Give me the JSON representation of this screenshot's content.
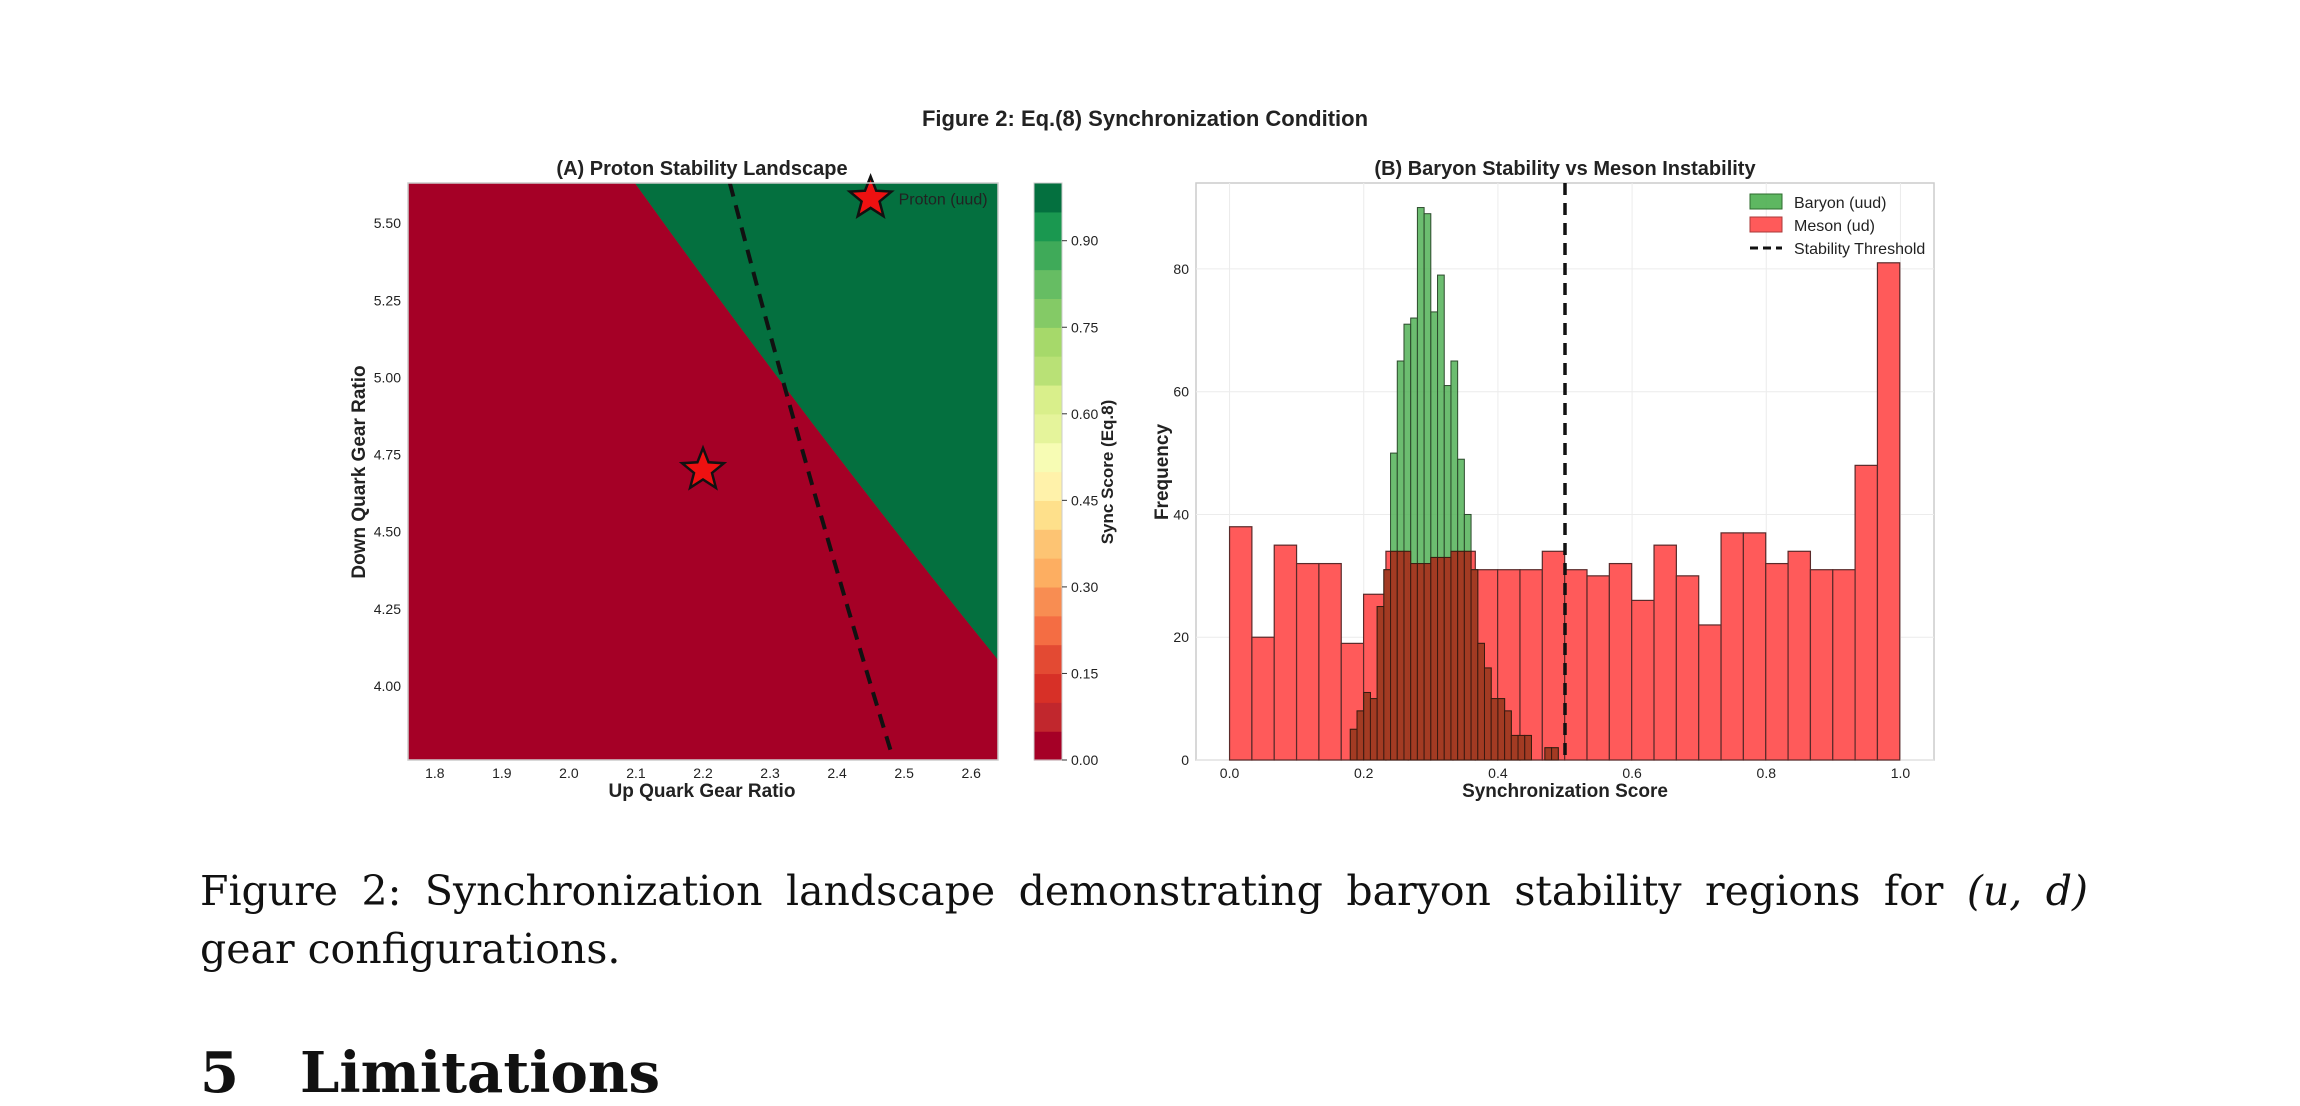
{
  "figure": {
    "suptitle": "Figure 2: Eq.(8) Synchronization Condition"
  },
  "chart_data": [
    {
      "type": "heatmap",
      "title": "(A) Proton Stability Landscape",
      "xlabel": "Up Quark Gear Ratio",
      "ylabel": "Down Quark Gear Ratio",
      "xlim": [
        1.76,
        2.64
      ],
      "ylim": [
        3.76,
        5.63
      ],
      "xticks": [
        "1.8",
        "1.9",
        "2.0",
        "2.1",
        "2.2",
        "2.3",
        "2.4",
        "2.5",
        "2.6"
      ],
      "yticks": [
        "4.00",
        "4.25",
        "4.50",
        "4.75",
        "5.00",
        "5.25",
        "5.50"
      ],
      "colormap": "RdYlGn",
      "colorbar": {
        "label": "Sync Score (Eq.8)",
        "range": [
          0,
          1
        ],
        "ticks": [
          "0.00",
          "0.15",
          "0.30",
          "0.45",
          "0.60",
          "0.75",
          "0.90"
        ],
        "levels": 20,
        "colors": [
          "#a50026",
          "#c1272d",
          "#d73027",
          "#e34a33",
          "#f46d43",
          "#f88d52",
          "#fdae61",
          "#fdc473",
          "#fee08b",
          "#fff2aa",
          "#f7fcb4",
          "#e5f49b",
          "#d9ef8b",
          "#b9e176",
          "#a6d96a",
          "#84ca66",
          "#66bd63",
          "#3faa59",
          "#1a9850",
          "#04703f"
        ]
      },
      "score_center_band_u": [
        2.84,
        2.06
      ],
      "score_slope_u_per_d": -0.33,
      "score_band_width": 0.0385,
      "threshold_curve": {
        "u_at_top": 2.24,
        "u_at_bottom": 2.48,
        "d_start": 3.79
      },
      "markers": [
        {
          "x": 2.2,
          "y": 4.7,
          "label": ""
        },
        {
          "x": 2.45,
          "y": 5.58,
          "label": "Proton (uud)"
        }
      ]
    },
    {
      "type": "bar",
      "title": "(B) Baryon Stability vs Meson Instability",
      "xlabel": "Synchronization Score",
      "ylabel": "Frequency",
      "xlim": [
        -0.05,
        1.05
      ],
      "ylim": [
        0,
        94
      ],
      "xticks": [
        "0.0",
        "0.2",
        "0.4",
        "0.6",
        "0.8",
        "1.0"
      ],
      "yticks": [
        "0",
        "20",
        "40",
        "60",
        "80"
      ],
      "threshold_x": 0.5,
      "series": [
        {
          "name": "Meson (ud)",
          "color": "#ff5a5a",
          "bin_start": 0.0,
          "bin_width": 0.0333,
          "values": [
            38,
            20,
            35,
            32,
            32,
            19,
            27,
            34,
            32,
            33,
            34,
            31,
            31,
            31,
            34,
            31,
            30,
            32,
            26,
            35,
            30,
            22,
            37,
            37,
            32,
            34,
            31,
            31,
            48,
            81
          ]
        },
        {
          "name": "Baryon (uud)",
          "color": "#4caf50",
          "bin_start": 0.18,
          "bin_width": 0.01,
          "values": [
            5,
            8,
            11,
            10,
            25,
            31,
            50,
            65,
            71,
            72,
            90,
            89,
            73,
            79,
            61,
            65,
            49,
            40,
            31,
            19,
            15,
            10,
            10,
            8,
            4,
            4,
            4,
            0,
            0,
            2,
            2
          ]
        }
      ],
      "legend": [
        "Baryon (uud)",
        "Meson (ud)",
        "Stability Threshold"
      ],
      "legend_position": "top-right"
    }
  ],
  "caption": {
    "prefix": "Figure 2:  Synchronization landscape demonstrating baryon stability regions for ",
    "math": "(u, d)",
    "suffix": " gear configurations."
  },
  "section": {
    "number": "5",
    "title": "Limitations"
  }
}
